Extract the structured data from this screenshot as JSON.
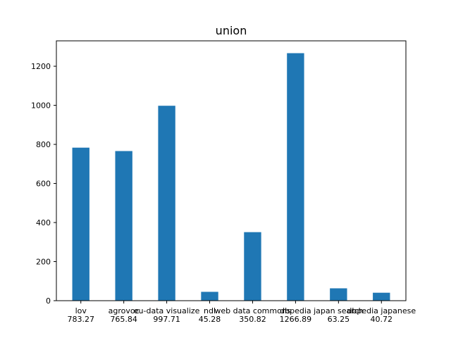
{
  "chart_data": {
    "type": "bar",
    "title": "union",
    "xlabel": "",
    "ylabel": "",
    "categories": [
      "lov",
      "agrovoc",
      "eu-data visualize",
      "ndl",
      "web data commons",
      "dbpedia",
      "japan search",
      "dbpedia japanese"
    ],
    "value_labels": [
      "783.27",
      "765.84",
      "997.71",
      "45.28",
      "350.82",
      "1266.89",
      "63.25",
      "40.72"
    ],
    "values": [
      783.27,
      765.84,
      997.71,
      45.28,
      350.82,
      1266.89,
      63.25,
      40.72
    ],
    "ylim": [
      0,
      1330
    ],
    "yticks": [
      0,
      200,
      400,
      600,
      800,
      1000,
      1200
    ],
    "grid": false,
    "legend": "none",
    "colors": {
      "bar": "#1f77b4",
      "axis": "#000000"
    }
  }
}
